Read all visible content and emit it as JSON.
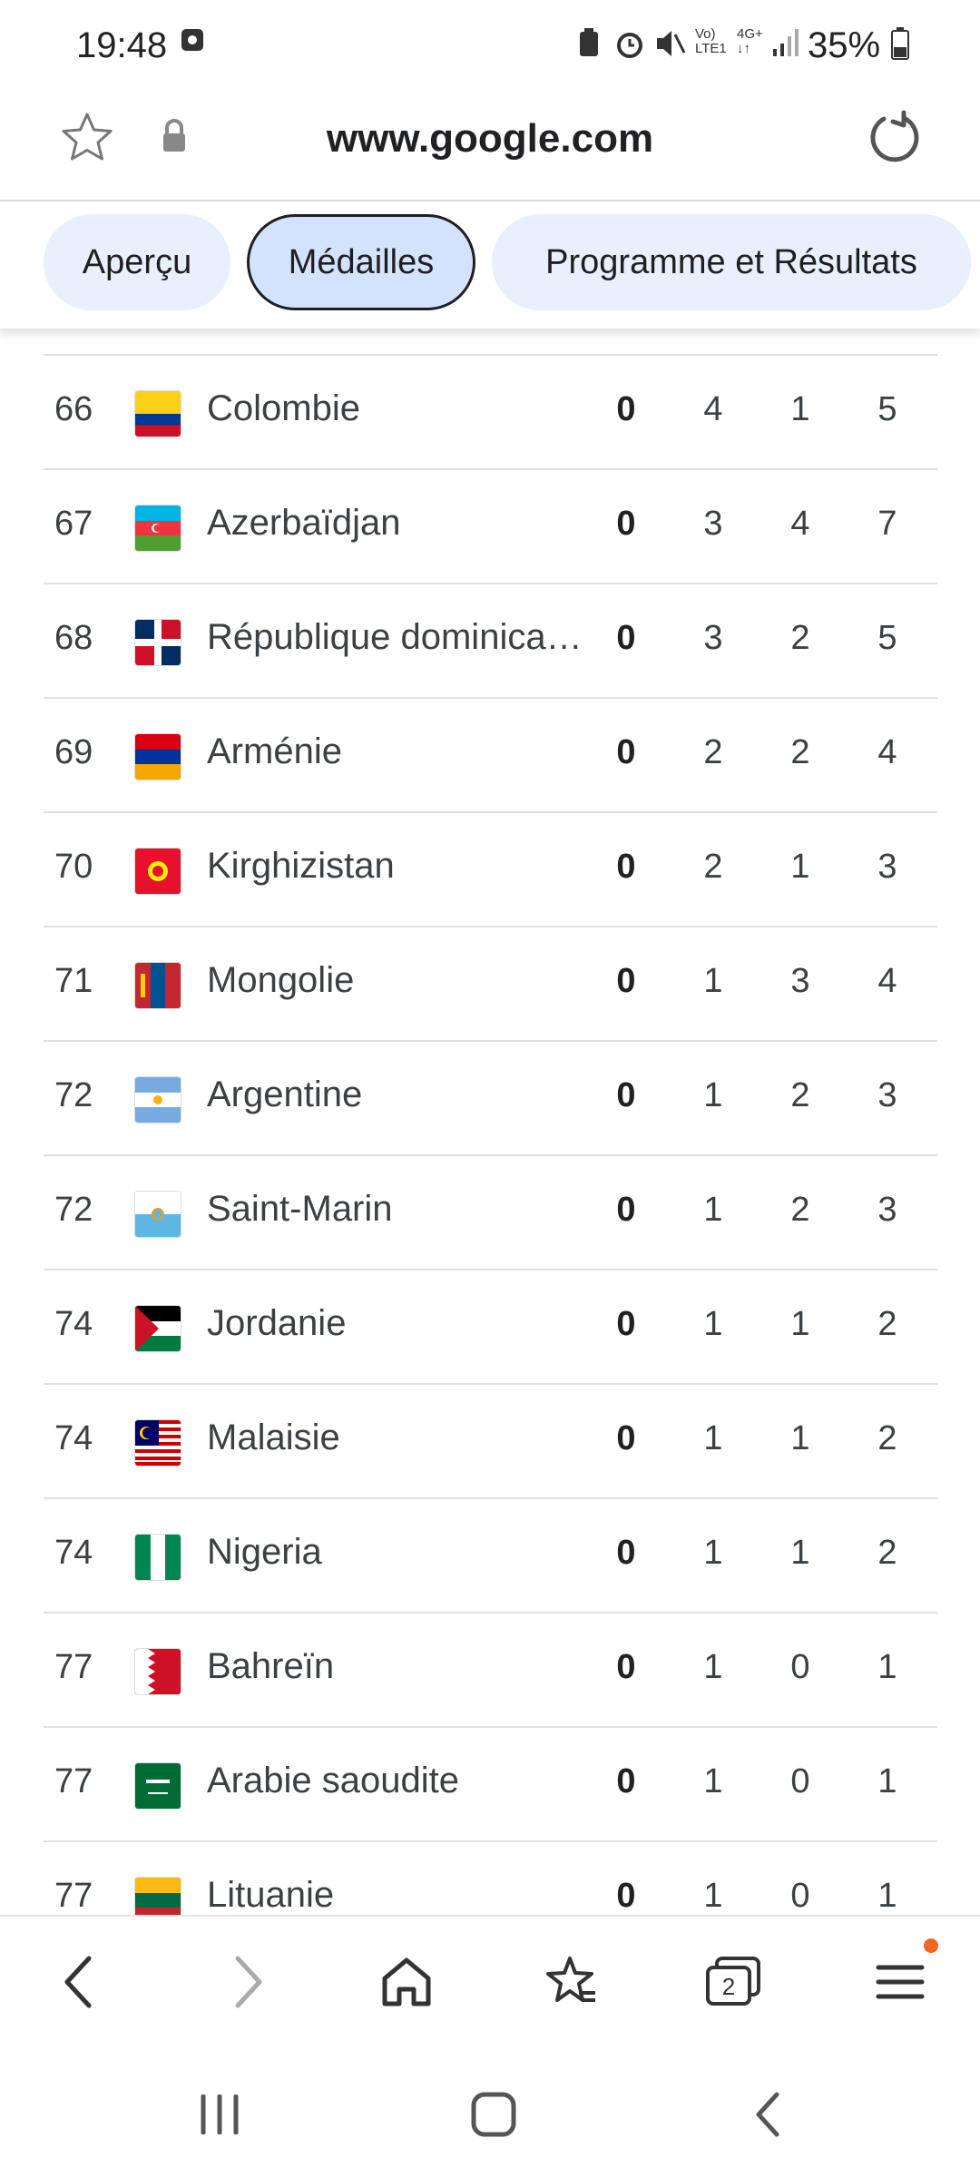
{
  "status": {
    "time": "19:48",
    "battery": "35%"
  },
  "browser": {
    "url": "www.google.com"
  },
  "tabs": [
    {
      "label": "Aperçu"
    },
    {
      "label": "Médailles"
    },
    {
      "label": "Programme et Résultats"
    }
  ],
  "rows": [
    {
      "rank": "66",
      "country": "Colombie",
      "gold": "0",
      "silver": "4",
      "bronze": "1",
      "total": "5"
    },
    {
      "rank": "67",
      "country": "Azerbaïdjan",
      "gold": "0",
      "silver": "3",
      "bronze": "4",
      "total": "7"
    },
    {
      "rank": "68",
      "country": "République dominica…",
      "gold": "0",
      "silver": "3",
      "bronze": "2",
      "total": "5"
    },
    {
      "rank": "69",
      "country": "Arménie",
      "gold": "0",
      "silver": "2",
      "bronze": "2",
      "total": "4"
    },
    {
      "rank": "70",
      "country": "Kirghizistan",
      "gold": "0",
      "silver": "2",
      "bronze": "1",
      "total": "3"
    },
    {
      "rank": "71",
      "country": "Mongolie",
      "gold": "0",
      "silver": "1",
      "bronze": "3",
      "total": "4"
    },
    {
      "rank": "72",
      "country": "Argentine",
      "gold": "0",
      "silver": "1",
      "bronze": "2",
      "total": "3"
    },
    {
      "rank": "72",
      "country": "Saint-Marin",
      "gold": "0",
      "silver": "1",
      "bronze": "2",
      "total": "3"
    },
    {
      "rank": "74",
      "country": "Jordanie",
      "gold": "0",
      "silver": "1",
      "bronze": "1",
      "total": "2"
    },
    {
      "rank": "74",
      "country": "Malaisie",
      "gold": "0",
      "silver": "1",
      "bronze": "1",
      "total": "2"
    },
    {
      "rank": "74",
      "country": "Nigeria",
      "gold": "0",
      "silver": "1",
      "bronze": "1",
      "total": "2"
    },
    {
      "rank": "77",
      "country": "Bahreïn",
      "gold": "0",
      "silver": "1",
      "bronze": "0",
      "total": "1"
    },
    {
      "rank": "77",
      "country": "Arabie saoudite",
      "gold": "0",
      "silver": "1",
      "bronze": "0",
      "total": "1"
    },
    {
      "rank": "77",
      "country": "Lituanie",
      "gold": "0",
      "silver": "1",
      "bronze": "0",
      "total": "1"
    }
  ],
  "bottom_nav": {
    "tabs_count": "2"
  },
  "colors": {
    "accent": "#e8f0fe",
    "active_chip": "#d3e3fd",
    "notification_dot": "#f26522"
  }
}
